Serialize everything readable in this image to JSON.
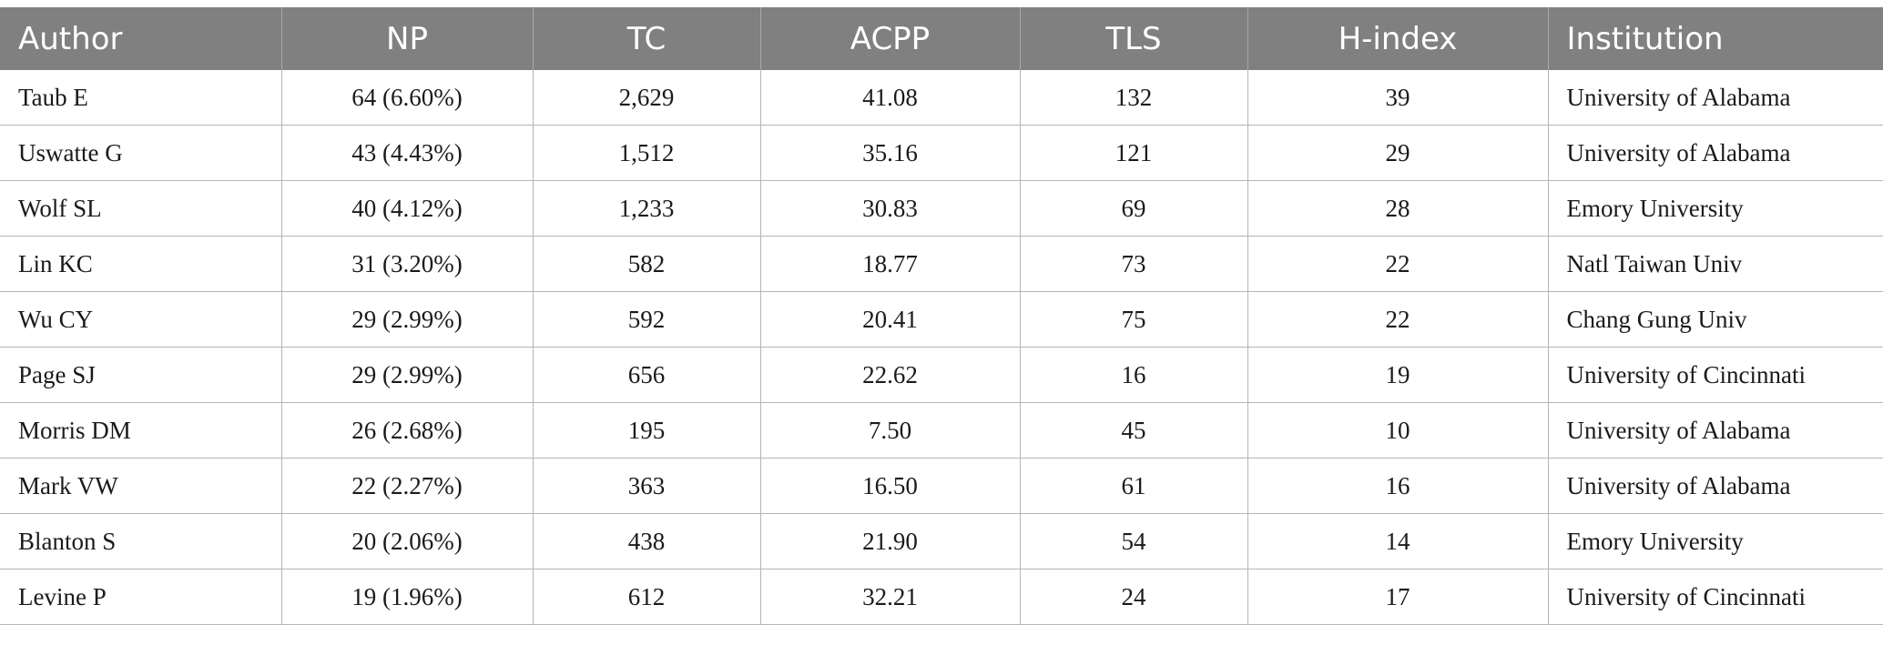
{
  "table": {
    "headers": [
      "Author",
      "NP",
      "TC",
      "ACPP",
      "TLS",
      "H-index",
      "Institution"
    ],
    "rows": [
      [
        "Taub E",
        "64 (6.60%)",
        "2,629",
        "41.08",
        "132",
        "39",
        "University of Alabama"
      ],
      [
        "Uswatte G",
        "43 (4.43%)",
        "1,512",
        "35.16",
        "121",
        "29",
        "University of Alabama"
      ],
      [
        "Wolf SL",
        "40 (4.12%)",
        "1,233",
        "30.83",
        "69",
        "28",
        "Emory University"
      ],
      [
        "Lin KC",
        "31 (3.20%)",
        "582",
        "18.77",
        "73",
        "22",
        "Natl Taiwan Univ"
      ],
      [
        "Wu CY",
        "29 (2.99%)",
        "592",
        "20.41",
        "75",
        "22",
        "Chang Gung Univ"
      ],
      [
        "Page SJ",
        "29 (2.99%)",
        "656",
        "22.62",
        "16",
        "19",
        "University of Cincinnati"
      ],
      [
        "Morris DM",
        "26 (2.68%)",
        "195",
        "7.50",
        "45",
        "10",
        "University of Alabama"
      ],
      [
        "Mark VW",
        "22 (2.27%)",
        "363",
        "16.50",
        "61",
        "16",
        "University of Alabama"
      ],
      [
        "Blanton S",
        "20 (2.06%)",
        "438",
        "21.90",
        "54",
        "14",
        "Emory University"
      ],
      [
        "Levine P",
        "19 (1.96%)",
        "612",
        "32.21",
        "24",
        "17",
        "University of Cincinnati"
      ]
    ]
  }
}
